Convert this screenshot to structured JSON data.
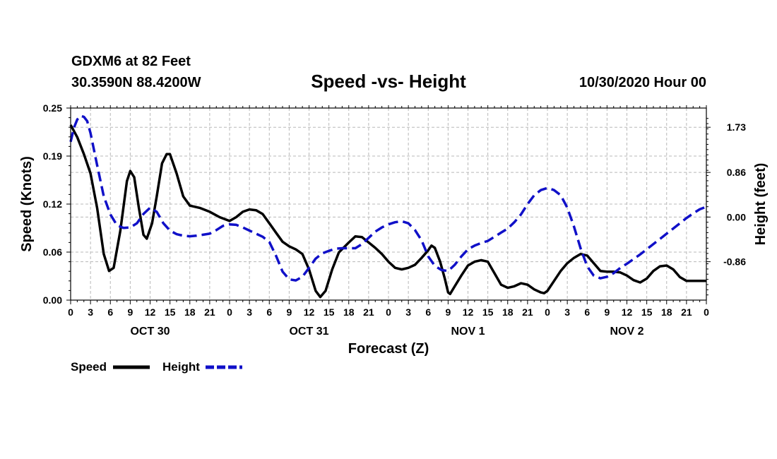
{
  "header": {
    "station": "GDXM6 at 82 Feet",
    "coords": "30.3590N 88.4200W",
    "title": "Speed -vs- Height",
    "datetime": "10/30/2020 Hour 00"
  },
  "chart_data": {
    "type": "line",
    "title": "Speed -vs- Height",
    "xlabel": "Forecast (Z)",
    "ylabel_left": "Speed (Knots)",
    "ylabel_right": "Height (feet)",
    "x_range_hours": [
      0,
      96
    ],
    "x_tick_labels": [
      "0",
      "3",
      "6",
      "9",
      "12",
      "15",
      "18",
      "21",
      "0",
      "3",
      "6",
      "9",
      "12",
      "15",
      "18",
      "21",
      "0",
      "3",
      "6",
      "9",
      "12",
      "15",
      "18",
      "21",
      "0",
      "3",
      "6",
      "9",
      "12",
      "15",
      "18",
      "21",
      "0"
    ],
    "date_labels": [
      {
        "label": "OCT 30",
        "hour": 12
      },
      {
        "label": "OCT 31",
        "hour": 36
      },
      {
        "label": "NOV 1",
        "hour": 60
      },
      {
        "label": "NOV 2",
        "hour": 84
      }
    ],
    "left_axis": {
      "ylim": [
        0,
        0.25
      ],
      "ticks": [
        "0.00",
        "0.06",
        "0.12",
        "0.19",
        "0.25"
      ]
    },
    "right_axis": {
      "ylim": [
        -1.6,
        2.1
      ],
      "ticks": [
        {
          "label": "1.73",
          "value": 1.73
        },
        {
          "label": "0.86",
          "value": 0.86
        },
        {
          "label": "0.00",
          "value": 0.0
        },
        {
          "label": "-0.86",
          "value": -0.86
        }
      ]
    },
    "grid": true,
    "series": [
      {
        "name": "Speed",
        "axis": "left",
        "color": "#000000",
        "style": "solid",
        "points": [
          [
            0,
            0.228
          ],
          [
            1,
            0.212
          ],
          [
            2,
            0.19
          ],
          [
            3,
            0.165
          ],
          [
            4,
            0.12
          ],
          [
            5,
            0.06
          ],
          [
            5.8,
            0.038
          ],
          [
            6.5,
            0.042
          ],
          [
            7.5,
            0.09
          ],
          [
            8.5,
            0.155
          ],
          [
            9,
            0.168
          ],
          [
            9.6,
            0.16
          ],
          [
            10.3,
            0.12
          ],
          [
            11,
            0.085
          ],
          [
            11.5,
            0.08
          ],
          [
            12.3,
            0.1
          ],
          [
            13,
            0.135
          ],
          [
            13.8,
            0.178
          ],
          [
            14.5,
            0.19
          ],
          [
            15,
            0.19
          ],
          [
            16,
            0.165
          ],
          [
            17,
            0.135
          ],
          [
            18,
            0.123
          ],
          [
            19.5,
            0.12
          ],
          [
            21,
            0.115
          ],
          [
            22.5,
            0.108
          ],
          [
            24,
            0.103
          ],
          [
            25,
            0.108
          ],
          [
            26,
            0.115
          ],
          [
            27,
            0.118
          ],
          [
            28,
            0.117
          ],
          [
            29,
            0.112
          ],
          [
            30,
            0.1
          ],
          [
            31,
            0.088
          ],
          [
            32,
            0.076
          ],
          [
            33,
            0.07
          ],
          [
            34,
            0.066
          ],
          [
            35,
            0.06
          ],
          [
            36,
            0.04
          ],
          [
            37,
            0.012
          ],
          [
            37.7,
            0.004
          ],
          [
            38.5,
            0.012
          ],
          [
            39.5,
            0.04
          ],
          [
            40.5,
            0.062
          ],
          [
            42,
            0.075
          ],
          [
            43,
            0.083
          ],
          [
            44,
            0.082
          ],
          [
            45,
            0.075
          ],
          [
            46,
            0.068
          ],
          [
            47,
            0.06
          ],
          [
            48,
            0.05
          ],
          [
            49,
            0.042
          ],
          [
            50,
            0.04
          ],
          [
            51,
            0.042
          ],
          [
            52,
            0.046
          ],
          [
            53,
            0.055
          ],
          [
            54,
            0.065
          ],
          [
            54.5,
            0.071
          ],
          [
            55,
            0.068
          ],
          [
            55.8,
            0.05
          ],
          [
            56.5,
            0.028
          ],
          [
            57,
            0.01
          ],
          [
            57.3,
            0.008
          ],
          [
            58,
            0.018
          ],
          [
            59,
            0.032
          ],
          [
            60,
            0.045
          ],
          [
            61,
            0.05
          ],
          [
            62,
            0.052
          ],
          [
            63,
            0.05
          ],
          [
            64,
            0.035
          ],
          [
            65,
            0.02
          ],
          [
            66,
            0.016
          ],
          [
            67,
            0.018
          ],
          [
            68,
            0.022
          ],
          [
            69,
            0.02
          ],
          [
            70,
            0.014
          ],
          [
            71,
            0.01
          ],
          [
            71.5,
            0.009
          ],
          [
            72,
            0.012
          ],
          [
            73,
            0.025
          ],
          [
            74,
            0.038
          ],
          [
            75,
            0.048
          ],
          [
            76,
            0.055
          ],
          [
            77,
            0.06
          ],
          [
            78,
            0.058
          ],
          [
            79,
            0.048
          ],
          [
            80,
            0.038
          ],
          [
            81,
            0.037
          ],
          [
            82,
            0.037
          ],
          [
            83,
            0.036
          ],
          [
            84,
            0.032
          ],
          [
            85,
            0.026
          ],
          [
            86,
            0.023
          ],
          [
            87,
            0.028
          ],
          [
            88,
            0.038
          ],
          [
            89,
            0.044
          ],
          [
            90,
            0.045
          ],
          [
            91,
            0.04
          ],
          [
            92,
            0.03
          ],
          [
            93,
            0.025
          ],
          [
            96,
            0.025
          ]
        ]
      },
      {
        "name": "Height",
        "axis": "right",
        "color": "#1010c8",
        "style": "dashed",
        "points": [
          [
            0,
            1.45
          ],
          [
            0.5,
            1.72
          ],
          [
            1,
            1.88
          ],
          [
            1.5,
            1.95
          ],
          [
            2,
            1.93
          ],
          [
            2.5,
            1.85
          ],
          [
            3,
            1.62
          ],
          [
            4,
            1.0
          ],
          [
            5,
            0.4
          ],
          [
            6,
            0.05
          ],
          [
            7,
            -0.16
          ],
          [
            8,
            -0.21
          ],
          [
            9,
            -0.2
          ],
          [
            10,
            -0.12
          ],
          [
            11,
            0.06
          ],
          [
            12,
            0.18
          ],
          [
            13,
            0.1
          ],
          [
            14,
            -0.12
          ],
          [
            15,
            -0.26
          ],
          [
            16,
            -0.33
          ],
          [
            17,
            -0.36
          ],
          [
            18,
            -0.37
          ],
          [
            19,
            -0.36
          ],
          [
            20,
            -0.34
          ],
          [
            21,
            -0.32
          ],
          [
            22,
            -0.25
          ],
          [
            23,
            -0.17
          ],
          [
            24,
            -0.14
          ],
          [
            25,
            -0.15
          ],
          [
            26,
            -0.2
          ],
          [
            27,
            -0.26
          ],
          [
            28,
            -0.32
          ],
          [
            29,
            -0.38
          ],
          [
            30,
            -0.48
          ],
          [
            31,
            -0.74
          ],
          [
            32,
            -1.05
          ],
          [
            33,
            -1.2
          ],
          [
            34,
            -1.22
          ],
          [
            35,
            -1.15
          ],
          [
            36,
            -0.98
          ],
          [
            37,
            -0.8
          ],
          [
            38,
            -0.7
          ],
          [
            39,
            -0.65
          ],
          [
            40,
            -0.61
          ],
          [
            41,
            -0.6
          ],
          [
            42,
            -0.6
          ],
          [
            43,
            -0.6
          ],
          [
            44,
            -0.52
          ],
          [
            45,
            -0.4
          ],
          [
            46,
            -0.28
          ],
          [
            47,
            -0.2
          ],
          [
            48,
            -0.14
          ],
          [
            49,
            -0.1
          ],
          [
            50,
            -0.08
          ],
          [
            51,
            -0.12
          ],
          [
            52,
            -0.25
          ],
          [
            53,
            -0.45
          ],
          [
            54,
            -0.76
          ],
          [
            55,
            -0.94
          ],
          [
            56,
            -1.02
          ],
          [
            57,
            -1.04
          ],
          [
            58,
            -0.92
          ],
          [
            59,
            -0.76
          ],
          [
            60,
            -0.62
          ],
          [
            61,
            -0.55
          ],
          [
            62,
            -0.5
          ],
          [
            63,
            -0.46
          ],
          [
            64,
            -0.38
          ],
          [
            65,
            -0.3
          ],
          [
            66,
            -0.22
          ],
          [
            67,
            -0.1
          ],
          [
            68,
            0.05
          ],
          [
            69,
            0.25
          ],
          [
            70,
            0.42
          ],
          [
            71,
            0.52
          ],
          [
            72,
            0.56
          ],
          [
            73,
            0.52
          ],
          [
            74,
            0.42
          ],
          [
            75,
            0.18
          ],
          [
            76,
            -0.18
          ],
          [
            77,
            -0.6
          ],
          [
            78,
            -0.95
          ],
          [
            79,
            -1.13
          ],
          [
            80,
            -1.18
          ],
          [
            81,
            -1.15
          ],
          [
            82,
            -1.08
          ],
          [
            83,
            -0.98
          ],
          [
            84,
            -0.9
          ],
          [
            85,
            -0.81
          ],
          [
            86,
            -0.72
          ],
          [
            87,
            -0.62
          ],
          [
            88,
            -0.52
          ],
          [
            89,
            -0.42
          ],
          [
            90,
            -0.32
          ],
          [
            91,
            -0.22
          ],
          [
            92,
            -0.12
          ],
          [
            93,
            -0.02
          ],
          [
            94,
            0.07
          ],
          [
            95,
            0.15
          ],
          [
            96,
            0.2
          ]
        ]
      }
    ],
    "legend": [
      {
        "label": "Speed",
        "color": "#000000",
        "style": "solid"
      },
      {
        "label": "Height",
        "color": "#1010c8",
        "style": "dashed"
      }
    ]
  }
}
